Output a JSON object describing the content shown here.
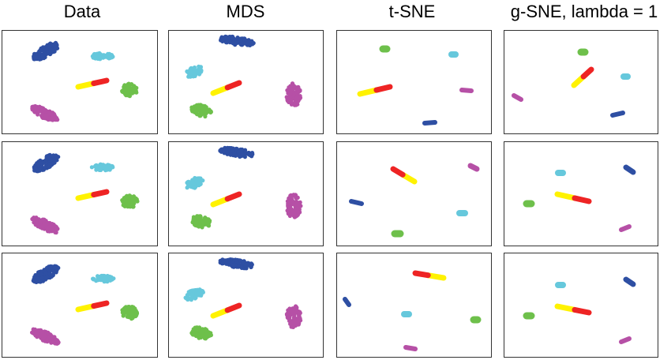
{
  "columns": [
    {
      "title": "Data"
    },
    {
      "title": "MDS"
    },
    {
      "title": "t-SNE"
    },
    {
      "title": "g-SNE, lambda = 1"
    }
  ],
  "rows": 3,
  "colors": {
    "blue": "#2e4fa3",
    "cyan": "#66c8dc",
    "yellow": "#fff200",
    "red": "#ee2424",
    "green": "#6ec04b",
    "magenta": "#b650a6",
    "border": "#333333"
  }
}
